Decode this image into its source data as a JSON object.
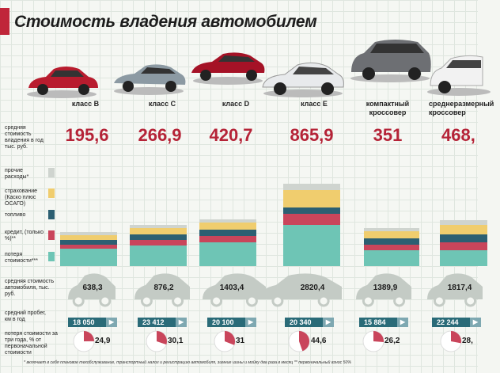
{
  "title": "Стоимость владения автомобилем",
  "classes": [
    {
      "name": "класс B",
      "cost": "195,6",
      "cost5": "638,3",
      "km": "18 050",
      "loss": "24,9",
      "lossv": 24.9,
      "stack": {
        "loss": 22,
        "credit": 5,
        "fuel": 6,
        "insurance": 6,
        "other": 4
      }
    },
    {
      "name": "класс C",
      "cost": "266,9",
      "cost5": "876,2",
      "km": "23 412",
      "loss": "30,1",
      "lossv": 30.1,
      "stack": {
        "loss": 26,
        "credit": 7,
        "fuel": 7,
        "insurance": 8,
        "other": 4
      }
    },
    {
      "name": "класс D",
      "cost": "420,7",
      "cost5": "1403,4",
      "km": "20 100",
      "loss": "31",
      "lossv": 31,
      "stack": {
        "loss": 30,
        "credit": 8,
        "fuel": 8,
        "insurance": 9,
        "other": 4
      }
    },
    {
      "name": "класс E",
      "cost": "865,9",
      "cost5": "2820,4",
      "km": "20 340",
      "loss": "44,6",
      "lossv": 44.6,
      "stack": {
        "loss": 52,
        "credit": 14,
        "fuel": 8,
        "insurance": 22,
        "other": 8
      }
    },
    {
      "name": "компактный кроссовер",
      "cost": "351",
      "cost5": "1389,9",
      "km": "15 884",
      "loss": "26,2",
      "lossv": 26.2,
      "stack": {
        "loss": 20,
        "credit": 7,
        "fuel": 8,
        "insurance": 9,
        "other": 4
      }
    },
    {
      "name": "среднеразмерный кроссовер",
      "cost": "468,",
      "cost5": "1817,4",
      "km": "22 244",
      "loss": "28,",
      "lossv": 28,
      "stack": {
        "loss": 20,
        "credit": 10,
        "fuel": 10,
        "insurance": 12,
        "other": 6
      }
    }
  ],
  "row_labels": {
    "cost": "средняя стоимость владения в год тыс. руб.",
    "other": "прочие расходы*",
    "insurance": "страхование (Каско плюс ОСАГО)",
    "fuel": "топливо",
    "credit": "кредит, (только %)**",
    "loss": "потеря стоимости***",
    "cost5": "средняя стоимость автомобиля, тыс. руб.",
    "km": "средний пробег, км в год",
    "lossp": "потеря стоимости за три года, % от первоначальной стоимости"
  },
  "colors": {
    "other": "#cfd4cf",
    "insurance": "#f0cd6e",
    "fuel": "#2c5f72",
    "credit": "#c9455b",
    "loss": "#6ec5b5",
    "accent": "#b52337"
  },
  "footnote": "* включает в себя плановое техобслуживание, транспортный налог и регистрацию автомобиля, зимние шины и мойку два раза в месяц    ** первоначальный взнос 50%",
  "chart_data": {
    "type": "bar",
    "title": "Стоимость владения автомобилем",
    "categories": [
      "класс B",
      "класс C",
      "класс D",
      "класс E",
      "компактный кроссовер",
      "среднеразмерный кроссовер"
    ],
    "series": [
      {
        "name": "средняя стоимость владения в год тыс. руб.",
        "values": [
          195.6,
          266.9,
          420.7,
          865.9,
          351,
          468
        ]
      },
      {
        "name": "средняя стоимость автомобиля, тыс. руб.",
        "values": [
          638.3,
          876.2,
          1403.4,
          2820.4,
          1389.9,
          1817.4
        ]
      },
      {
        "name": "средний пробег, км в год",
        "values": [
          18050,
          23412,
          20100,
          20340,
          15884,
          22244
        ]
      },
      {
        "name": "потеря стоимости за три года, % от первоначальной стоимости",
        "values": [
          24.9,
          30.1,
          31,
          44.6,
          26.2,
          28
        ]
      }
    ]
  }
}
